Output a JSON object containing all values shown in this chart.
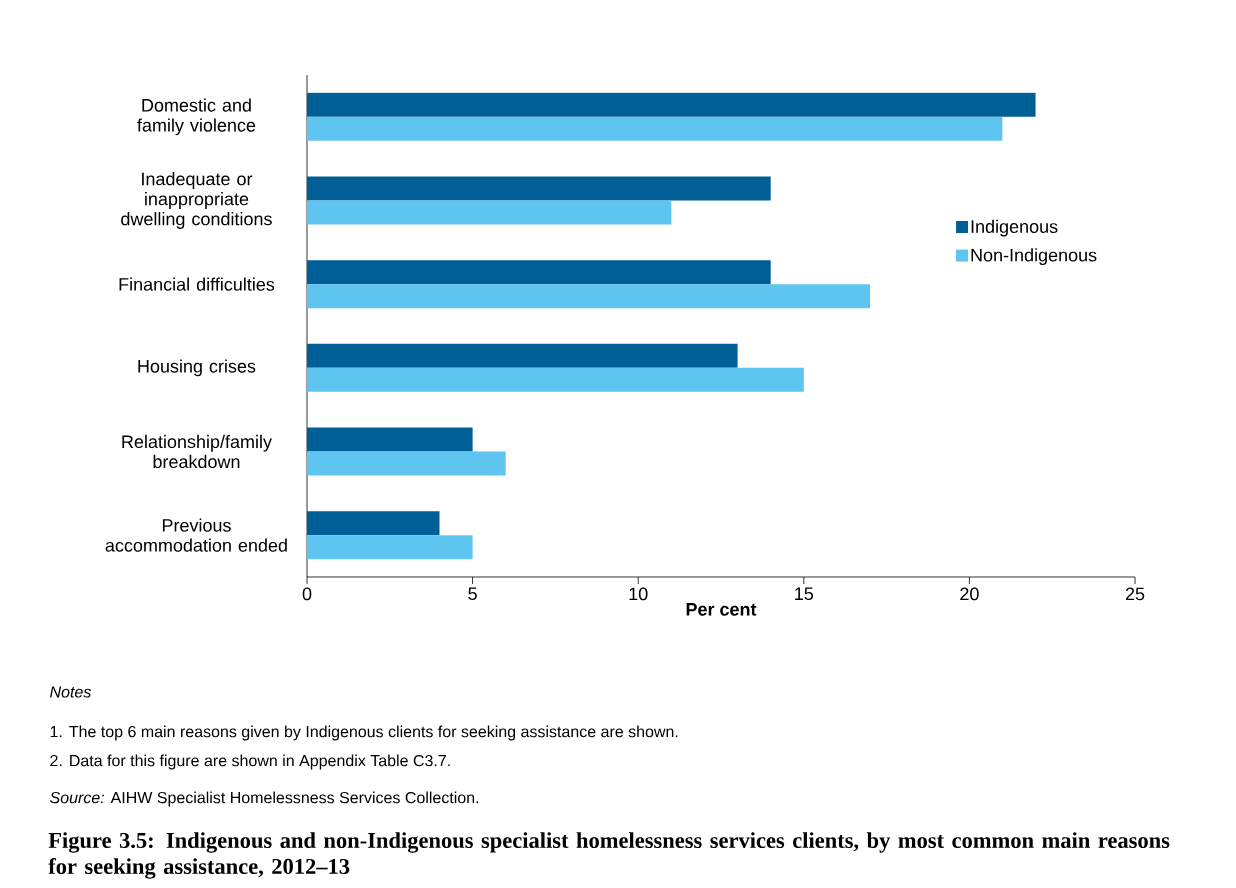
{
  "chart_data": {
    "type": "bar",
    "orientation": "horizontal",
    "title": "Figure 3.5: Indigenous and non-Indigenous specialist homelessness services clients, by most common main reasons for seeking assistance, 2012–13",
    "xlabel": "Per cent",
    "categories": [
      "Domestic and family violence",
      "Inadequate or inappropriate dwelling conditions",
      "Financial difficulties",
      "Housing crises",
      "Relationship/family breakdown",
      "Previous accommodation ended"
    ],
    "series": [
      {
        "name": "Indigenous",
        "color": "#005f96",
        "values": [
          22,
          14,
          14,
          13,
          5,
          4
        ]
      },
      {
        "name": "Non-Indigenous",
        "color": "#5ec5f0",
        "values": [
          21,
          11,
          17,
          15,
          6,
          5
        ]
      }
    ],
    "xlim": [
      0,
      25
    ],
    "xticks": [
      0,
      5,
      10,
      15,
      20,
      25
    ],
    "legend": "right",
    "annotations": [
      "Notes",
      "1. The top 6 main reasons given by Indigenous clients for seeking assistance are shown.",
      "2. Data for this figure are shown in Appendix Table C3.7.",
      "*Source:* AIHW Specialist Homelessness Services Collection."
    ]
  }
}
